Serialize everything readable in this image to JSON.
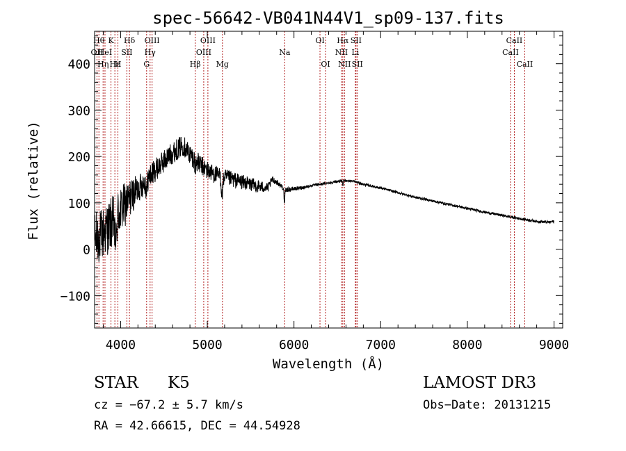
{
  "chart_data": {
    "type": "line",
    "title": "spec-56642-VB041N44V1_sp09-137.fits",
    "xlabel": "Wavelength (Å)",
    "ylabel": "Flux (relative)",
    "xlim": [
      3700,
      9100
    ],
    "ylim": [
      -170,
      470
    ],
    "xticks": [
      4000,
      5000,
      6000,
      7000,
      8000,
      9000
    ],
    "xtick_labels": [
      "4000",
      "5000",
      "6000",
      "7000",
      "8000",
      "9000"
    ],
    "yticks": [
      -100,
      0,
      100,
      200,
      300,
      400
    ],
    "ytick_labels": [
      "−100",
      "0",
      "100",
      "200",
      "300",
      "400"
    ],
    "line_color": "#000000",
    "marker_color": "#b22222",
    "spectrum_anchors": [
      [
        3700,
        20
      ],
      [
        3780,
        30
      ],
      [
        3850,
        45
      ],
      [
        3950,
        70
      ],
      [
        4050,
        95
      ],
      [
        4150,
        120
      ],
      [
        4250,
        140
      ],
      [
        4350,
        160
      ],
      [
        4450,
        180
      ],
      [
        4550,
        200
      ],
      [
        4650,
        215
      ],
      [
        4720,
        225
      ],
      [
        4800,
        205
      ],
      [
        4900,
        185
      ],
      [
        5000,
        170
      ],
      [
        5100,
        160
      ],
      [
        5200,
        155
      ],
      [
        5300,
        150
      ],
      [
        5400,
        145
      ],
      [
        5500,
        140
      ],
      [
        5600,
        135
      ],
      [
        5700,
        132
      ],
      [
        5750,
        150
      ],
      [
        5800,
        145
      ],
      [
        5900,
        128
      ],
      [
        6000,
        130
      ],
      [
        6100,
        133
      ],
      [
        6200,
        137
      ],
      [
        6300,
        140
      ],
      [
        6400,
        143
      ],
      [
        6500,
        146
      ],
      [
        6600,
        148
      ],
      [
        6700,
        146
      ],
      [
        6800,
        140
      ],
      [
        7000,
        132
      ],
      [
        7200,
        122
      ],
      [
        7400,
        112
      ],
      [
        7600,
        104
      ],
      [
        7800,
        96
      ],
      [
        8000,
        88
      ],
      [
        8200,
        80
      ],
      [
        8400,
        73
      ],
      [
        8600,
        66
      ],
      [
        8800,
        60
      ],
      [
        8950,
        58
      ],
      [
        9000,
        60
      ]
    ],
    "spectrum_noise": [
      [
        3700,
        60
      ],
      [
        4000,
        55
      ],
      [
        4200,
        30
      ],
      [
        4400,
        25
      ],
      [
        4900,
        22
      ],
      [
        5200,
        18
      ],
      [
        5600,
        14
      ],
      [
        5800,
        6
      ],
      [
        6200,
        3
      ],
      [
        7000,
        2.5
      ],
      [
        9000,
        3
      ]
    ],
    "absorption_dips": [
      {
        "x": 5170,
        "depth": 40,
        "width": 12
      },
      {
        "x": 5890,
        "depth": 35,
        "width": 6
      },
      {
        "x": 6563,
        "depth": 12,
        "width": 5
      },
      {
        "x": 4861,
        "depth": 20,
        "width": 8
      },
      {
        "x": 4300,
        "depth": 25,
        "width": 10
      },
      {
        "x": 3950,
        "depth": 60,
        "width": 8
      },
      {
        "x": 3935,
        "depth": 55,
        "width": 6
      }
    ],
    "line_markers": [
      {
        "x": 3727,
        "label": "OII",
        "row": 2
      },
      {
        "x": 3750,
        "label": "Hθ",
        "row": 1
      },
      {
        "x": 3798,
        "label": "Hη",
        "row": 3
      },
      {
        "x": 3820,
        "label": "HeI",
        "row": 2
      },
      {
        "x": 3889,
        "label": "K",
        "row": 1
      },
      {
        "x": 3934,
        "label": "Hε",
        "row": 3
      },
      {
        "x": 3969,
        "label": "H",
        "row": 3
      },
      {
        "x": 4072,
        "label": "SII",
        "row": 2
      },
      {
        "x": 4102,
        "label": "Hδ",
        "row": 1
      },
      {
        "x": 4300,
        "label": "G",
        "row": 3
      },
      {
        "x": 4340,
        "label": "Hγ",
        "row": 2
      },
      {
        "x": 4363,
        "label": "OIII",
        "row": 1
      },
      {
        "x": 4861,
        "label": "Hβ",
        "row": 3
      },
      {
        "x": 4959,
        "label": "OIII",
        "row": 2
      },
      {
        "x": 5007,
        "label": "OIII",
        "row": 1
      },
      {
        "x": 5175,
        "label": "Mg",
        "row": 3
      },
      {
        "x": 5893,
        "label": "Na",
        "row": 2
      },
      {
        "x": 6300,
        "label": "OI",
        "row": 1
      },
      {
        "x": 6364,
        "label": "OI",
        "row": 3
      },
      {
        "x": 6548,
        "label": "NII",
        "row": 2
      },
      {
        "x": 6563,
        "label": "Hα",
        "row": 1
      },
      {
        "x": 6583,
        "label": "NII",
        "row": 3
      },
      {
        "x": 6708,
        "label": "Li",
        "row": 2
      },
      {
        "x": 6716,
        "label": "SII",
        "row": 1
      },
      {
        "x": 6731,
        "label": "SII",
        "row": 3
      },
      {
        "x": 8498,
        "label": "CaII",
        "row": 2
      },
      {
        "x": 8542,
        "label": "CaII",
        "row": 1
      },
      {
        "x": 8662,
        "label": "CaII",
        "row": 3
      }
    ]
  },
  "info": {
    "class_label": "STAR",
    "subclass": "K5",
    "survey": "LAMOST DR3",
    "cz_line": "cz = −67.2 ± 5.7 km/s",
    "obs_date": "Obs−Date: 20131215",
    "radec": "RA =  42.66615, DEC =  44.54928"
  }
}
